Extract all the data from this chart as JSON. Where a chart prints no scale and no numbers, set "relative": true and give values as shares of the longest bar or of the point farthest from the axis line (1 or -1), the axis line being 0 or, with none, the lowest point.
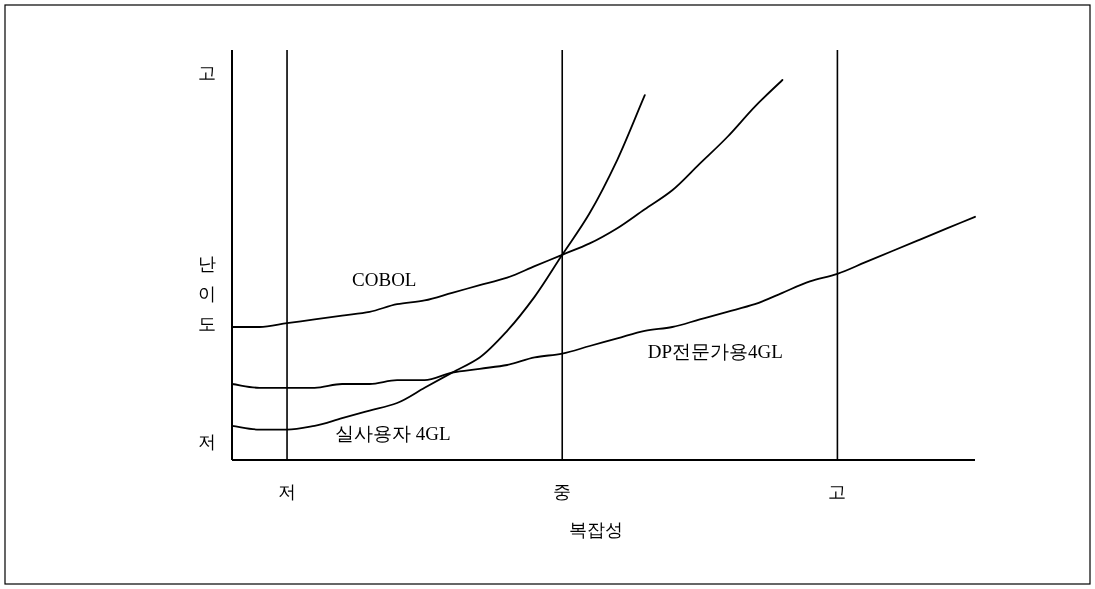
{
  "chart_data": {
    "type": "line",
    "relative": true,
    "xlabel": "복잡성",
    "ylabel": "난이도",
    "categories": [
      null,
      null,
      "저",
      null,
      null,
      null,
      null,
      null,
      null,
      null,
      null,
      null,
      "중",
      null,
      null,
      null,
      null,
      null,
      null,
      null,
      null,
      null,
      "고",
      null,
      null,
      null,
      null,
      null
    ],
    "annotations": [
      "고",
      "저"
    ],
    "ref_lines": [
      {
        "axis": "x",
        "value": "저",
        "color": "#000000"
      },
      {
        "axis": "x",
        "value": "중",
        "color": "#000000"
      },
      {
        "axis": "x",
        "value": "고",
        "color": "#000000"
      }
    ],
    "series": [
      {
        "name": "COBOL",
        "color": "#000000",
        "values": [
          0.35,
          0.35,
          0.36,
          0.37,
          0.38,
          0.39,
          0.41,
          0.42,
          0.44,
          0.46,
          0.48,
          0.51,
          0.54,
          0.57,
          0.61,
          0.66,
          0.71,
          0.78,
          0.85,
          0.93,
          1,
          null,
          null,
          null,
          null,
          null,
          null,
          null
        ]
      },
      {
        "name": "실사용자 4GL",
        "color": "#000000",
        "values": [
          0.09,
          0.08,
          0.08,
          0.09,
          0.11,
          0.13,
          0.15,
          0.19,
          0.23,
          0.27,
          0.34,
          0.43,
          0.54,
          0.65,
          0.79,
          0.96,
          null,
          null,
          null,
          null,
          null,
          null,
          null,
          null,
          null,
          null,
          null,
          null
        ]
      },
      {
        "name": "DP전문가용4GL",
        "color": "#000000",
        "values": [
          0.2,
          0.19,
          0.19,
          0.19,
          0.2,
          0.2,
          0.21,
          0.21,
          0.23,
          0.24,
          0.25,
          0.27,
          0.28,
          0.3,
          0.32,
          0.34,
          0.35,
          0.37,
          0.39,
          0.41,
          0.44,
          0.47,
          0.49,
          0.52,
          0.55,
          0.58,
          0.61,
          0.64
        ]
      }
    ]
  }
}
